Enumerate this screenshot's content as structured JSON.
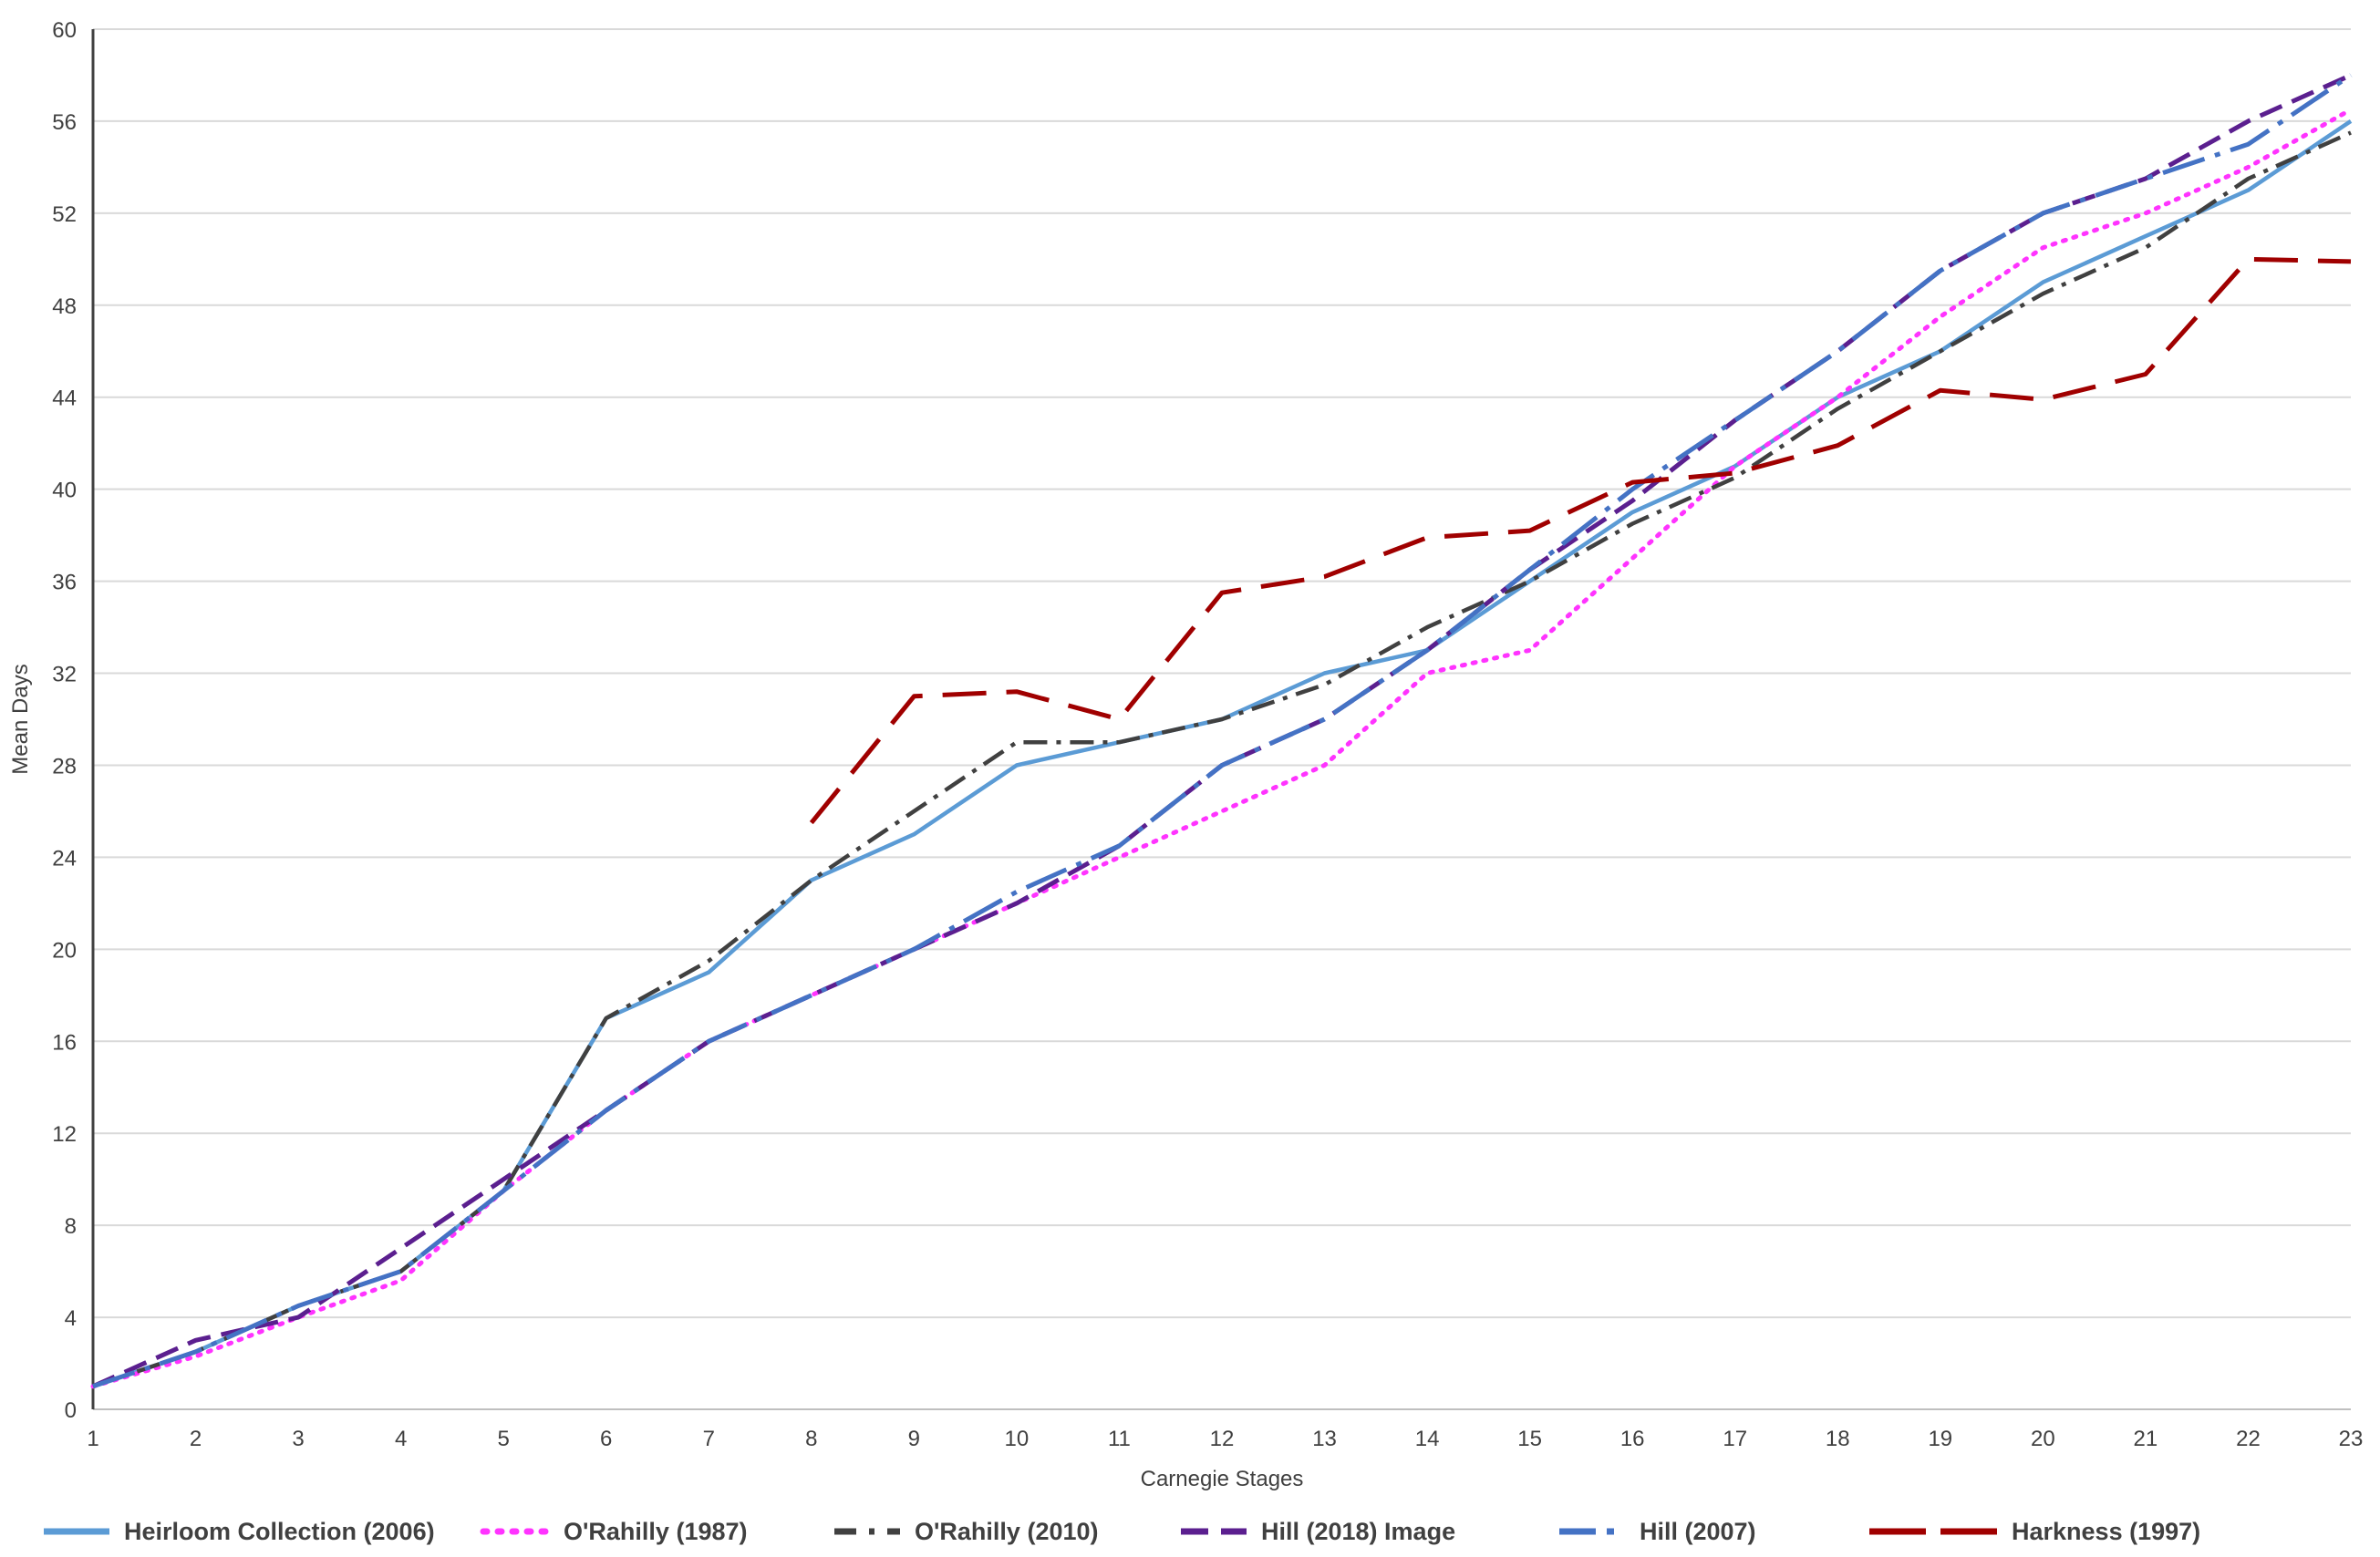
{
  "chart_data": {
    "type": "line",
    "title": "",
    "xlabel": "Carnegie Stages",
    "ylabel": "Mean Days",
    "x": [
      1,
      2,
      3,
      4,
      5,
      6,
      7,
      8,
      9,
      10,
      11,
      12,
      13,
      14,
      15,
      16,
      17,
      18,
      19,
      20,
      21,
      22,
      23
    ],
    "xlim": [
      1,
      23
    ],
    "ylim": [
      0,
      60
    ],
    "yticks": [
      0,
      4,
      8,
      12,
      16,
      20,
      24,
      28,
      32,
      36,
      40,
      44,
      48,
      52,
      56,
      60
    ],
    "grid": "horizontal",
    "legend_position": "bottom",
    "series": [
      {
        "name": "Heirloom Collection (2006)",
        "color": "#5b9bd5",
        "style": "solid",
        "values": [
          1,
          2.5,
          4.5,
          6,
          9.5,
          17,
          19,
          23,
          25,
          28,
          29,
          30,
          32,
          33,
          36,
          39,
          41,
          44,
          46,
          49,
          51,
          53,
          56
        ]
      },
      {
        "name": "O'Rahilly (1987)",
        "color": "#ff33ff",
        "style": "dotted",
        "values": [
          1,
          2.3,
          4,
          5.6,
          9.5,
          13,
          16,
          18,
          20,
          22,
          24,
          26,
          28,
          32,
          33,
          37,
          41,
          44,
          47.5,
          50.5,
          52,
          54,
          56.5
        ]
      },
      {
        "name": "O'Rahilly (2010)",
        "color": "#404040",
        "style": "dashdot",
        "values": [
          1,
          2.5,
          4.5,
          6,
          9.5,
          17,
          19.5,
          23,
          26,
          29,
          29,
          30,
          31.5,
          34,
          36,
          38.5,
          40.5,
          43.5,
          46,
          48.5,
          50.5,
          53.5,
          55.5
        ]
      },
      {
        "name": "Hill (2018) Image",
        "color": "#5b1f8f",
        "style": "dashed",
        "values": [
          1,
          3,
          4,
          7,
          10,
          13,
          16,
          18,
          20,
          22,
          24.5,
          28,
          30,
          33,
          36.5,
          39.5,
          43,
          46,
          49.5,
          52,
          53.5,
          56,
          58
        ]
      },
      {
        "name": "Hill (2007)",
        "color": "#4472c4",
        "style": "longdashdot",
        "values": [
          1,
          2.5,
          4.5,
          6,
          9.5,
          13,
          16,
          18,
          20,
          22.5,
          24.5,
          28,
          30,
          33,
          36.5,
          40,
          43,
          46,
          49.5,
          52,
          53.5,
          55,
          58
        ]
      },
      {
        "name": "Harkness (1997)",
        "color": "#a00000",
        "style": "longdash",
        "values": [
          null,
          null,
          null,
          null,
          null,
          null,
          null,
          25.5,
          31,
          31.2,
          30,
          35.5,
          36.2,
          37.9,
          38.2,
          40.3,
          40.7,
          41.9,
          44.3,
          43.9,
          45,
          50,
          49.9
        ]
      }
    ]
  }
}
